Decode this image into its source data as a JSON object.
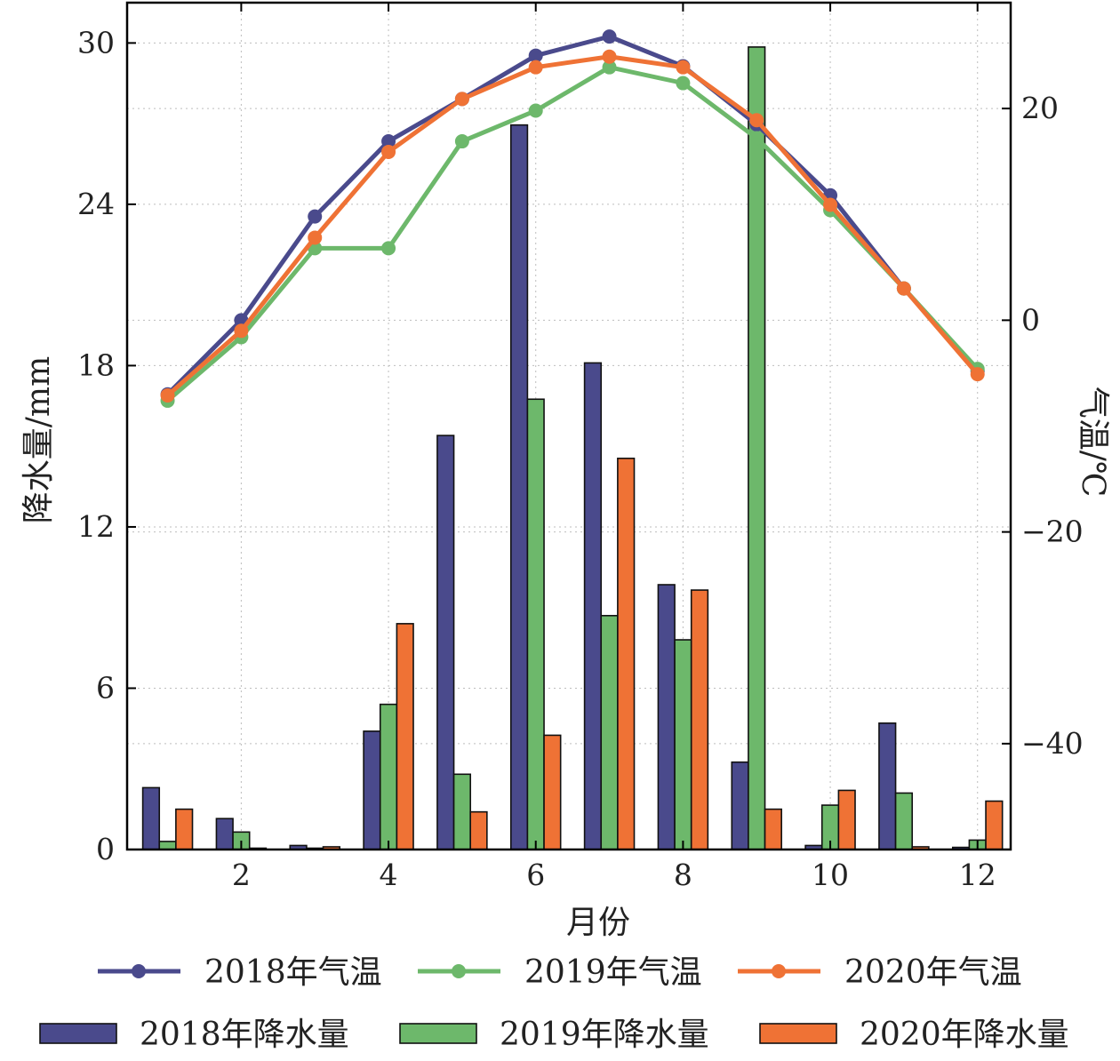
{
  "chart_data": {
    "type": "bar",
    "xlabel": "月份",
    "ylabel_left": "降水量/mm",
    "ylabel_right": "气温/℃",
    "x": [
      1,
      2,
      3,
      4,
      5,
      6,
      7,
      8,
      9,
      10,
      11,
      12
    ],
    "xticks": [
      2,
      4,
      6,
      8,
      10,
      12
    ],
    "xlim": [
      0.45,
      12.45
    ],
    "ylim_left": [
      0,
      31.5
    ],
    "ylim_right": [
      -50,
      30
    ],
    "yticks_left": [
      0,
      6,
      12,
      18,
      24,
      30
    ],
    "yticks_right": [
      -40,
      -20,
      0,
      20
    ],
    "ytick_labels_right": [
      "−40",
      "−20",
      "0",
      "20"
    ],
    "grid": true,
    "bar_series": [
      {
        "name": "2018年降水量",
        "color": "#4a4a8c",
        "values": [
          2.3,
          1.15,
          0.15,
          4.4,
          15.4,
          26.95,
          18.1,
          9.85,
          3.25,
          0.15,
          4.7,
          0.08
        ]
      },
      {
        "name": "2019年降水量",
        "color": "#6db86b",
        "values": [
          0.3,
          0.65,
          0.05,
          5.4,
          2.8,
          16.75,
          8.7,
          7.8,
          29.85,
          1.65,
          2.1,
          0.35
        ]
      },
      {
        "name": "2020年降水量",
        "color": "#ef7235",
        "values": [
          1.5,
          0.05,
          0.1,
          8.4,
          1.4,
          4.25,
          14.55,
          9.65,
          1.5,
          2.2,
          0.1,
          1.8
        ]
      }
    ],
    "line_series": [
      {
        "name": "2018年气温",
        "color": "#4a4a8c",
        "values": [
          -7.0,
          0.0,
          9.8,
          16.9,
          20.9,
          25.0,
          26.8,
          24.0,
          18.5,
          11.8,
          3.0,
          -4.8
        ]
      },
      {
        "name": "2019年气温",
        "color": "#6db86b",
        "values": [
          -7.6,
          -1.6,
          6.8,
          6.8,
          16.9,
          19.8,
          23.9,
          22.4,
          17.2,
          10.4,
          3.0,
          -4.6
        ]
      },
      {
        "name": "2020年气温",
        "color": "#ef7235",
        "values": [
          -7.1,
          -1.0,
          7.8,
          15.9,
          20.9,
          23.9,
          24.9,
          23.9,
          18.9,
          10.9,
          3.0,
          -5.1
        ]
      }
    ]
  }
}
